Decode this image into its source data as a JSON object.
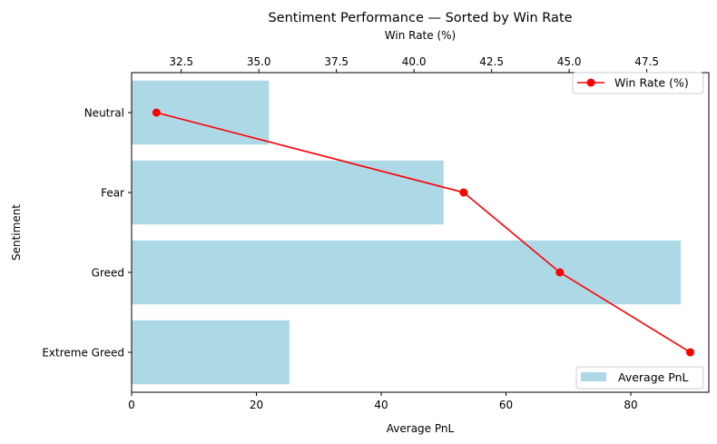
{
  "chart_data": {
    "type": "bar",
    "orientation": "horizontal",
    "title": "Sentiment Performance — Sorted by Win Rate",
    "xlabel": "Average PnL",
    "ylabel": "Sentiment",
    "x2label": "Win Rate (%)",
    "categories": [
      "Neutral",
      "Fear",
      "Greed",
      "Extreme Greed"
    ],
    "xlim": [
      0,
      92.5
    ],
    "xticks": [
      "0",
      "20",
      "40",
      "60",
      "80"
    ],
    "xtick_values": [
      0,
      20,
      40,
      60,
      80
    ],
    "x2lim": [
      30.9,
      49.5
    ],
    "x2ticks": [
      "32.5",
      "35.0",
      "37.5",
      "40.0",
      "42.5",
      "45.0",
      "47.5"
    ],
    "x2tick_values": [
      32.5,
      35.0,
      37.5,
      40.0,
      42.5,
      45.0,
      47.5
    ],
    "series": [
      {
        "name": "Average PnL",
        "kind": "bar",
        "axis": "bottom",
        "color": "#add8e6",
        "values": [
          22.0,
          50.0,
          88.0,
          25.3
        ]
      },
      {
        "name": "Win Rate (%)",
        "kind": "line",
        "axis": "top",
        "color": "#ff0000",
        "marker": "circle",
        "values": [
          31.7,
          41.6,
          44.7,
          48.9
        ]
      }
    ],
    "legends": {
      "line_legend_position": "top-right",
      "bar_legend_position": "bottom-right"
    },
    "grid": false
  }
}
